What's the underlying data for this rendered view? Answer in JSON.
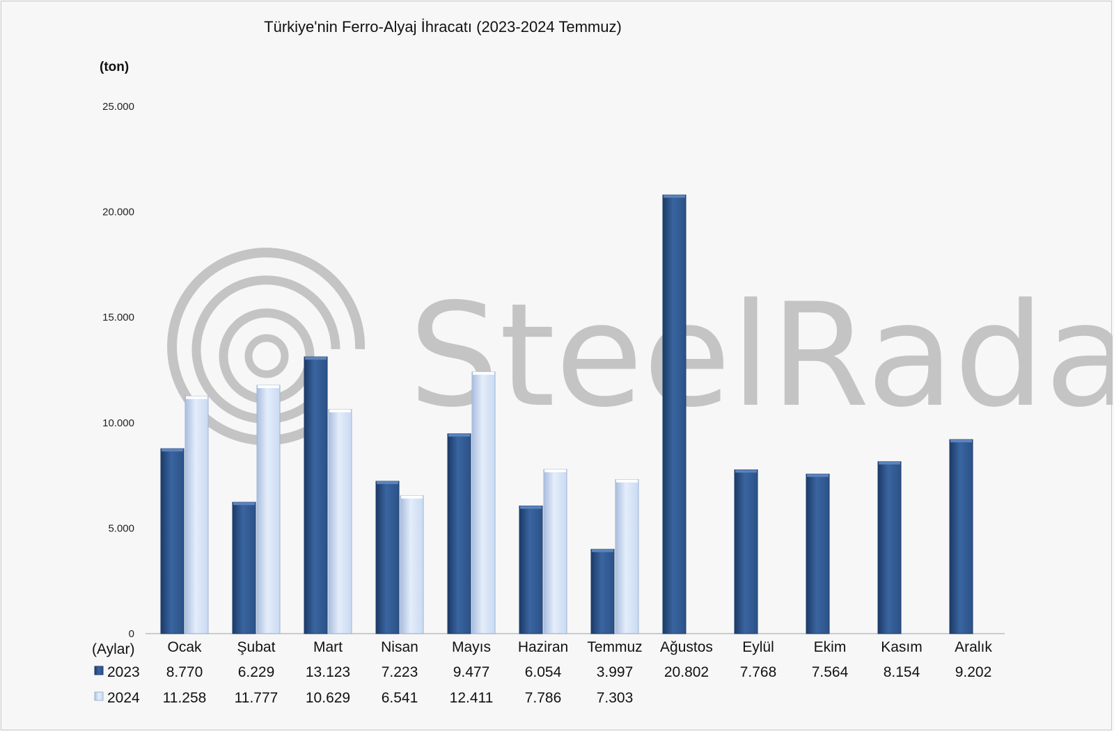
{
  "chart_data": {
    "type": "bar",
    "title": "Türkiye'nin  Ferro-Alyaj İhracatı (2023-2024 Temmuz)",
    "unit_label": "(ton)",
    "xlabel": "(Aylar)",
    "categories": [
      "Ocak",
      "Şubat",
      "Mart",
      "Nisan",
      "Mayıs",
      "Haziran",
      "Temmuz",
      "Ağustos",
      "Eylül",
      "Ekim",
      "Kasım",
      "Aralık"
    ],
    "series": [
      {
        "name": "2023",
        "color": "#2b5288",
        "values": [
          8770,
          6229,
          13123,
          7223,
          9477,
          6054,
          3997,
          20802,
          7768,
          7564,
          8154,
          9202
        ],
        "labels": [
          "8.770",
          "6.229",
          "13.123",
          "7.223",
          "9.477",
          "6.054",
          "3.997",
          "20.802",
          "7.768",
          "7.564",
          "8.154",
          "9.202"
        ]
      },
      {
        "name": "2024",
        "color": "#c9daf2",
        "values": [
          11258,
          11777,
          10629,
          6541,
          12411,
          7786,
          7303,
          null,
          null,
          null,
          null,
          null
        ],
        "labels": [
          "11.258",
          "11.777",
          "10.629",
          "6.541",
          "12.411",
          "7.786",
          "7.303",
          "",
          "",
          "",
          "",
          ""
        ]
      }
    ],
    "ylim": [
      0,
      25000
    ],
    "yticks": [
      0,
      5000,
      10000,
      15000,
      20000,
      25000
    ],
    "ytick_labels": [
      "0",
      "5.000",
      "10.000",
      "15.000",
      "20.000",
      "25.000"
    ],
    "grid": false,
    "legend": "data-table-below"
  },
  "watermark": {
    "text": "SteelRadar",
    "color": "#c2c2c2"
  }
}
